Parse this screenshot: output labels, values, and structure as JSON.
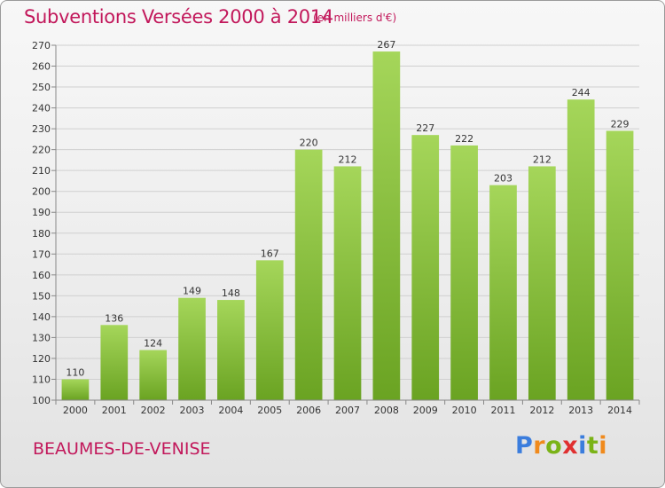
{
  "title": "Subventions Versées 2000 à 2014",
  "subtitle": "(en milliers d'€)",
  "commune": "BEAUMES-DE-VENISE",
  "logo": {
    "text": "Proxiti",
    "letter_colors": [
      "#3b7ddd",
      "#f08a1c",
      "#7ab317",
      "#e03030",
      "#3b7ddd",
      "#7ab317",
      "#f08a1c"
    ]
  },
  "colors": {
    "title": "#c2185b",
    "bar_top": "#a5d65a",
    "bar_bottom": "#6aa322",
    "grid": "#d0d0d0"
  },
  "chart_data": {
    "type": "bar",
    "title": "Subventions Versées 2000 à 2014",
    "subtitle": "(en milliers d'€)",
    "categories": [
      "2000",
      "2001",
      "2002",
      "2003",
      "2004",
      "2005",
      "2006",
      "2007",
      "2008",
      "2009",
      "2010",
      "2011",
      "2012",
      "2013",
      "2014"
    ],
    "values": [
      110,
      136,
      124,
      149,
      148,
      167,
      220,
      212,
      267,
      227,
      222,
      203,
      212,
      244,
      229
    ],
    "ylim": [
      100,
      270
    ],
    "yticks": [
      100,
      110,
      120,
      130,
      140,
      150,
      160,
      170,
      180,
      190,
      200,
      210,
      220,
      230,
      240,
      250,
      260,
      270
    ],
    "grid": true,
    "legend": "none"
  }
}
